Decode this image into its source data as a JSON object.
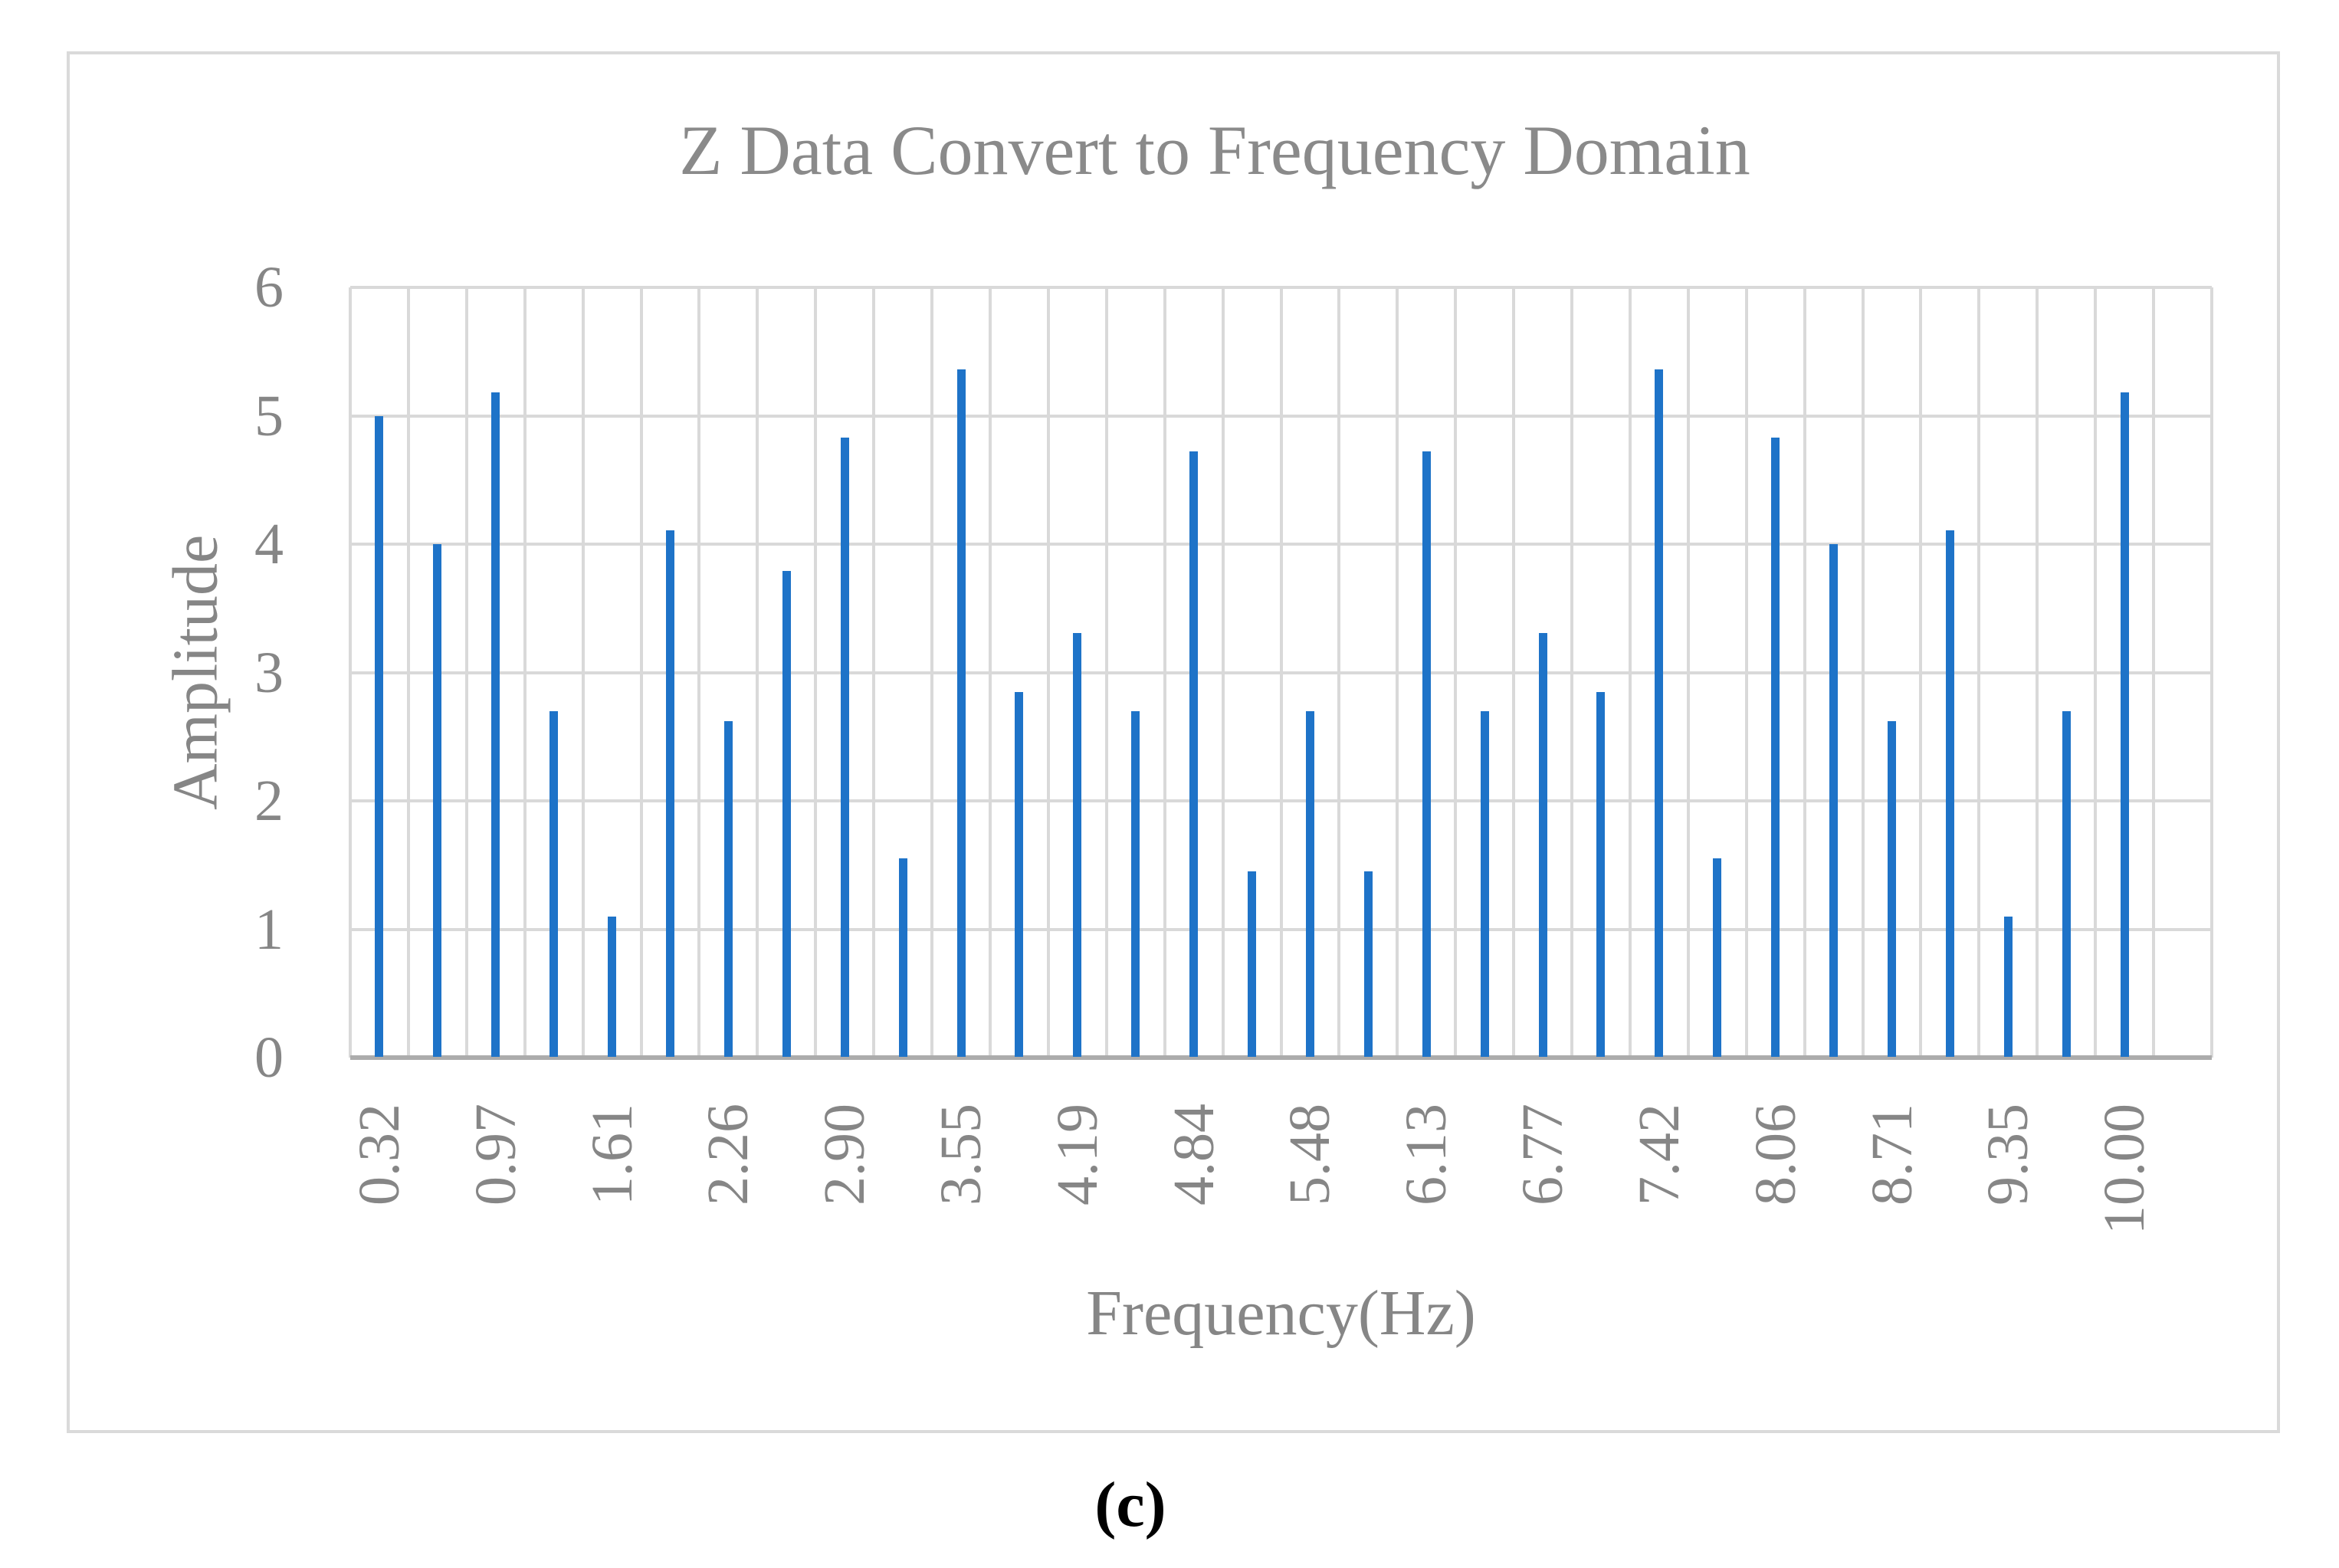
{
  "figure": {
    "caption": "(c)",
    "background": "#FFFFFF",
    "border_color": "#DADADA"
  },
  "chart_data": {
    "type": "bar",
    "title": "Z Data Convert to Frequency Domain",
    "xlabel": "Frequency(Hz)",
    "ylabel": "Amplitude",
    "ylim": [
      0,
      6
    ],
    "yticks": [
      "0",
      "1",
      "2",
      "3",
      "4",
      "5",
      "6"
    ],
    "grid": true,
    "legend": false,
    "x": [
      0.32,
      0.65,
      0.97,
      1.29,
      1.61,
      1.94,
      2.26,
      2.58,
      2.9,
      3.23,
      3.55,
      3.87,
      4.19,
      4.52,
      4.84,
      5.16,
      5.48,
      5.81,
      6.13,
      6.45,
      6.77,
      7.1,
      7.42,
      7.74,
      8.06,
      8.39,
      8.71,
      9.03,
      9.35,
      9.68,
      10.0
    ],
    "values": [
      5.0,
      4.0,
      5.18,
      2.7,
      1.1,
      4.11,
      2.62,
      3.79,
      4.83,
      1.55,
      5.36,
      2.85,
      3.31,
      2.7,
      4.72,
      1.45,
      2.7,
      1.45,
      4.72,
      2.7,
      3.31,
      2.85,
      5.36,
      1.55,
      4.83,
      4.0,
      2.62,
      4.11,
      1.1,
      2.7,
      5.18
    ],
    "xtick_labels": [
      "0.32",
      "0.97",
      "1.61",
      "2.26",
      "2.90",
      "3.55",
      "4.19",
      "4.84",
      "5.48",
      "6.13",
      "6.77",
      "7.42",
      "8.06",
      "8.71",
      "9.35",
      "10.00"
    ],
    "xtick_every": 2,
    "colors": {
      "bar": "#1E73C8",
      "gridline": "#D9D9D9",
      "axis_line": "#ACACAC",
      "text": "#868686",
      "title": "#8A8A8A",
      "caption": "#000000"
    }
  }
}
